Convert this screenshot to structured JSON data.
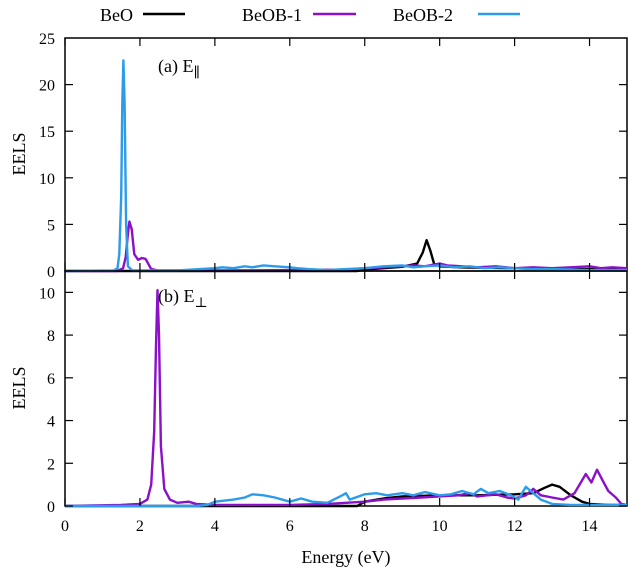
{
  "chart_data": {
    "type": "line",
    "legend": {
      "position": "top",
      "entries": [
        {
          "label": "BeO",
          "color": "#000000"
        },
        {
          "label": "BeOB-1",
          "color": "#8B10C8"
        },
        {
          "label": "BeOB-2",
          "color": "#2B9BEA"
        }
      ]
    },
    "xlabel": "Energy (eV)",
    "xlim": [
      0,
      15
    ],
    "xticks": [
      "0",
      "2",
      "4",
      "6",
      "8",
      "10",
      "12",
      "14"
    ],
    "grid": false,
    "panels": [
      {
        "label": "(a) E",
        "label_subscript": "∥",
        "ylabel": "EELS",
        "ylim": [
          0,
          25
        ],
        "yticks": [
          "0",
          "5",
          "10",
          "15",
          "20",
          "25"
        ],
        "series": [
          {
            "name": "BeO",
            "color": "#000000",
            "points": [
              [
                0,
                0
              ],
              [
                7.8,
                0
              ],
              [
                8,
                0.15
              ],
              [
                8.5,
                0.3
              ],
              [
                9,
                0.45
              ],
              [
                9.4,
                0.8
              ],
              [
                9.55,
                2.0
              ],
              [
                9.65,
                3.3
              ],
              [
                9.75,
                2.2
              ],
              [
                9.85,
                0.8
              ],
              [
                10,
                0.5
              ],
              [
                10.5,
                0.4
              ],
              [
                11,
                0.35
              ],
              [
                12,
                0.3
              ],
              [
                13,
                0.25
              ],
              [
                14,
                0.2
              ],
              [
                15,
                0.2
              ]
            ]
          },
          {
            "name": "BeOB-1",
            "color": "#8B10C8",
            "points": [
              [
                0,
                0
              ],
              [
                1.4,
                0
              ],
              [
                1.55,
                0.3
              ],
              [
                1.62,
                1.5
              ],
              [
                1.68,
                4.0
              ],
              [
                1.72,
                5.3
              ],
              [
                1.78,
                4.5
              ],
              [
                1.85,
                1.8
              ],
              [
                1.95,
                1.2
              ],
              [
                2.05,
                1.4
              ],
              [
                2.15,
                1.3
              ],
              [
                2.3,
                0.2
              ],
              [
                2.5,
                0.05
              ],
              [
                4,
                0.05
              ],
              [
                6,
                0.1
              ],
              [
                7.5,
                0.15
              ],
              [
                8,
                0.3
              ],
              [
                8.5,
                0.4
              ],
              [
                9,
                0.5
              ],
              [
                9.3,
                0.6
              ],
              [
                9.6,
                0.5
              ],
              [
                10,
                0.8
              ],
              [
                10.2,
                0.6
              ],
              [
                10.6,
                0.5
              ],
              [
                11,
                0.4
              ],
              [
                11.5,
                0.5
              ],
              [
                12,
                0.3
              ],
              [
                12.5,
                0.4
              ],
              [
                13,
                0.3
              ],
              [
                13.5,
                0.4
              ],
              [
                14,
                0.5
              ],
              [
                14.3,
                0.3
              ],
              [
                14.6,
                0.4
              ],
              [
                15,
                0.3
              ]
            ]
          },
          {
            "name": "BeOB-2",
            "color": "#2B9BEA",
            "points": [
              [
                0,
                0
              ],
              [
                1.3,
                0.05
              ],
              [
                1.4,
                0.3
              ],
              [
                1.45,
                1.8
              ],
              [
                1.5,
                8
              ],
              [
                1.53,
                18
              ],
              [
                1.56,
                22.6
              ],
              [
                1.59,
                18
              ],
              [
                1.63,
                5
              ],
              [
                1.68,
                0.5
              ],
              [
                1.8,
                0.05
              ],
              [
                3,
                0.05
              ],
              [
                4,
                0.3
              ],
              [
                4.2,
                0.4
              ],
              [
                4.5,
                0.3
              ],
              [
                4.8,
                0.5
              ],
              [
                5,
                0.4
              ],
              [
                5.3,
                0.6
              ],
              [
                5.6,
                0.5
              ],
              [
                6,
                0.4
              ],
              [
                6.2,
                0.3
              ],
              [
                6.5,
                0.2
              ],
              [
                7,
                0.1
              ],
              [
                7.5,
                0.2
              ],
              [
                8,
                0.3
              ],
              [
                8.5,
                0.5
              ],
              [
                9,
                0.6
              ],
              [
                9.3,
                0.4
              ],
              [
                9.6,
                0.5
              ],
              [
                10,
                0.6
              ],
              [
                10.4,
                0.4
              ],
              [
                10.8,
                0.5
              ],
              [
                11.2,
                0.3
              ],
              [
                11.6,
                0.4
              ],
              [
                12,
                0.3
              ],
              [
                12.4,
                0.2
              ],
              [
                13,
                0.2
              ],
              [
                14,
                0.1
              ],
              [
                15,
                0.1
              ]
            ]
          }
        ]
      },
      {
        "label": "(b) E",
        "label_subscript": "⊥",
        "ylabel": "EELS",
        "ylim": [
          0,
          11
        ],
        "yticks": [
          "0",
          "2",
          "4",
          "6",
          "8",
          "10"
        ],
        "series": [
          {
            "name": "BeO",
            "color": "#000000",
            "points": [
              [
                0,
                0
              ],
              [
                7.8,
                0
              ],
              [
                8,
                0.2
              ],
              [
                8.5,
                0.35
              ],
              [
                9,
                0.45
              ],
              [
                10,
                0.5
              ],
              [
                11,
                0.5
              ],
              [
                12,
                0.55
              ],
              [
                12.5,
                0.6
              ],
              [
                12.8,
                0.85
              ],
              [
                13,
                1.0
              ],
              [
                13.2,
                0.9
              ],
              [
                13.5,
                0.5
              ],
              [
                13.8,
                0.2
              ],
              [
                14,
                0.1
              ],
              [
                14.5,
                0.05
              ],
              [
                15,
                0.05
              ]
            ]
          },
          {
            "name": "BeOB-1",
            "color": "#8B10C8",
            "points": [
              [
                0,
                0
              ],
              [
                1.5,
                0.05
              ],
              [
                2,
                0.1
              ],
              [
                2.2,
                0.3
              ],
              [
                2.3,
                1.0
              ],
              [
                2.38,
                3.5
              ],
              [
                2.43,
                7.5
              ],
              [
                2.47,
                10.1
              ],
              [
                2.51,
                8.0
              ],
              [
                2.56,
                2.8
              ],
              [
                2.65,
                0.8
              ],
              [
                2.8,
                0.3
              ],
              [
                3,
                0.15
              ],
              [
                3.3,
                0.2
              ],
              [
                3.5,
                0.1
              ],
              [
                4,
                0.05
              ],
              [
                5,
                0.05
              ],
              [
                6,
                0.05
              ],
              [
                7,
                0.1
              ],
              [
                7.5,
                0.15
              ],
              [
                8,
                0.2
              ],
              [
                8.5,
                0.3
              ],
              [
                9,
                0.35
              ],
              [
                9.5,
                0.4
              ],
              [
                10,
                0.45
              ],
              [
                10.5,
                0.5
              ],
              [
                10.8,
                0.6
              ],
              [
                11,
                0.45
              ],
              [
                11.5,
                0.55
              ],
              [
                11.8,
                0.4
              ],
              [
                12,
                0.35
              ],
              [
                12.3,
                0.5
              ],
              [
                12.5,
                0.8
              ],
              [
                12.7,
                0.5
              ],
              [
                13,
                0.4
              ],
              [
                13.3,
                0.3
              ],
              [
                13.6,
                0.6
              ],
              [
                13.9,
                1.5
              ],
              [
                14.05,
                1.1
              ],
              [
                14.2,
                1.7
              ],
              [
                14.35,
                1.2
              ],
              [
                14.5,
                0.7
              ],
              [
                14.7,
                0.4
              ],
              [
                14.85,
                0.1
              ],
              [
                15,
                0.05
              ]
            ]
          },
          {
            "name": "BeOB-2",
            "color": "#2B9BEA",
            "points": [
              [
                0,
                0
              ],
              [
                3.5,
                0
              ],
              [
                3.8,
                0.05
              ],
              [
                4,
                0.2
              ],
              [
                4.5,
                0.3
              ],
              [
                4.8,
                0.4
              ],
              [
                5,
                0.55
              ],
              [
                5.3,
                0.5
              ],
              [
                5.6,
                0.4
              ],
              [
                6,
                0.2
              ],
              [
                6.3,
                0.35
              ],
              [
                6.6,
                0.2
              ],
              [
                7,
                0.15
              ],
              [
                7.4,
                0.5
              ],
              [
                7.5,
                0.6
              ],
              [
                7.6,
                0.3
              ],
              [
                8,
                0.55
              ],
              [
                8.3,
                0.6
              ],
              [
                8.6,
                0.5
              ],
              [
                9,
                0.6
              ],
              [
                9.3,
                0.5
              ],
              [
                9.6,
                0.65
              ],
              [
                10,
                0.5
              ],
              [
                10.3,
                0.55
              ],
              [
                10.6,
                0.7
              ],
              [
                10.9,
                0.55
              ],
              [
                11.1,
                0.8
              ],
              [
                11.3,
                0.6
              ],
              [
                11.6,
                0.7
              ],
              [
                11.9,
                0.5
              ],
              [
                12.1,
                0.3
              ],
              [
                12.3,
                0.9
              ],
              [
                12.5,
                0.6
              ],
              [
                12.7,
                0.3
              ],
              [
                13,
                0.1
              ],
              [
                13.5,
                0.05
              ],
              [
                15,
                0.05
              ]
            ]
          }
        ]
      }
    ]
  }
}
